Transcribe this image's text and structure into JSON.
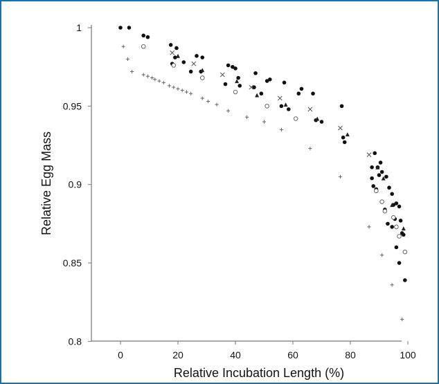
{
  "chart_data": {
    "type": "scatter",
    "title": "",
    "xlabel": "Relative Incubation Length (%)",
    "ylabel": "Relative Egg Mass",
    "xlim": [
      -10,
      100
    ],
    "ylim": [
      0.8,
      1.0
    ],
    "xticks": [
      0,
      20,
      40,
      60,
      80,
      100
    ],
    "yticks": [
      0.8,
      0.85,
      0.9,
      0.95,
      1.0
    ],
    "xtick_labels": [
      "0",
      "20",
      "40",
      "60",
      "80",
      "100"
    ],
    "ytick_labels": [
      "0.8",
      "0.85",
      "0.9",
      "0.95",
      "1"
    ],
    "grid": false,
    "series": [
      {
        "marker": "filled-circle",
        "color": "#111111",
        "points": [
          [
            0,
            1.0
          ],
          [
            3,
            1.0
          ],
          [
            8,
            0.995
          ],
          [
            9.5,
            0.994
          ],
          [
            17.5,
            0.989
          ],
          [
            19.5,
            0.987
          ],
          [
            19,
            0.981
          ],
          [
            22,
            0.978
          ],
          [
            18,
            0.977
          ],
          [
            24.5,
            0.972
          ],
          [
            26.5,
            0.982
          ],
          [
            28.5,
            0.981
          ],
          [
            28,
            0.972
          ],
          [
            36.5,
            0.964
          ],
          [
            37.5,
            0.976
          ],
          [
            39,
            0.975
          ],
          [
            40,
            0.974
          ],
          [
            41,
            0.968
          ],
          [
            41.5,
            0.963
          ],
          [
            47,
            0.971
          ],
          [
            46.5,
            0.962
          ],
          [
            49,
            0.958
          ],
          [
            51,
            0.966
          ],
          [
            52,
            0.967
          ],
          [
            57,
            0.965
          ],
          [
            56,
            0.95
          ],
          [
            58.5,
            0.948
          ],
          [
            62,
            0.958
          ],
          [
            63,
            0.961
          ],
          [
            67,
            0.958
          ],
          [
            68,
            0.941
          ],
          [
            70,
            0.94
          ],
          [
            77,
            0.95
          ],
          [
            77.5,
            0.93
          ],
          [
            78,
            0.927
          ],
          [
            87.5,
            0.911
          ],
          [
            88.5,
            0.92
          ],
          [
            89.5,
            0.911
          ],
          [
            90,
            0.906
          ],
          [
            90.5,
            0.914
          ],
          [
            91,
            0.908
          ],
          [
            87.5,
            0.904
          ],
          [
            88,
            0.899
          ],
          [
            89,
            0.897
          ],
          [
            92.5,
            0.905
          ],
          [
            93.5,
            0.898
          ],
          [
            94.5,
            0.894
          ],
          [
            92,
            0.884
          ],
          [
            93,
            0.875
          ],
          [
            95,
            0.887
          ],
          [
            96,
            0.888
          ],
          [
            97,
            0.886
          ],
          [
            95.5,
            0.878
          ],
          [
            97.5,
            0.877
          ],
          [
            98,
            0.869
          ],
          [
            96,
            0.86
          ],
          [
            97,
            0.85
          ],
          [
            99,
            0.839
          ],
          [
            98.5,
            0.868
          ],
          [
            94.5,
            0.873
          ]
        ]
      },
      {
        "marker": "open-circle",
        "color": "#555555",
        "points": [
          [
            8,
            0.988
          ],
          [
            18.5,
            0.976
          ],
          [
            28.5,
            0.968
          ],
          [
            40,
            0.959
          ],
          [
            51,
            0.95
          ],
          [
            61,
            0.942
          ],
          [
            89,
            0.896
          ],
          [
            91,
            0.889
          ],
          [
            92,
            0.883
          ],
          [
            95,
            0.879
          ],
          [
            96,
            0.873
          ],
          [
            97,
            0.867
          ],
          [
            99,
            0.857
          ]
        ]
      },
      {
        "marker": "x",
        "color": "#555555",
        "points": [
          [
            18,
            0.984
          ],
          [
            25.5,
            0.977
          ],
          [
            35.5,
            0.97
          ],
          [
            45.5,
            0.962
          ],
          [
            55.5,
            0.955
          ],
          [
            66,
            0.948
          ],
          [
            76.5,
            0.936
          ],
          [
            86.5,
            0.919
          ]
        ]
      },
      {
        "marker": "triangle",
        "color": "#222222",
        "points": [
          [
            20,
            0.982
          ],
          [
            28.5,
            0.973
          ],
          [
            40.5,
            0.966
          ],
          [
            47.5,
            0.957
          ],
          [
            57.5,
            0.951
          ],
          [
            68.5,
            0.942
          ],
          [
            79,
            0.932
          ],
          [
            89.5,
            0.911
          ],
          [
            91.5,
            0.904
          ],
          [
            94.5,
            0.887
          ],
          [
            98.5,
            0.872
          ]
        ]
      },
      {
        "marker": "plus",
        "color": "#666666",
        "points": [
          [
            1,
            0.988
          ],
          [
            2.5,
            0.98
          ],
          [
            4,
            0.972
          ],
          [
            8,
            0.97
          ],
          [
            9.5,
            0.969
          ],
          [
            11,
            0.968
          ],
          [
            12,
            0.967
          ],
          [
            13.5,
            0.966
          ],
          [
            15,
            0.965
          ],
          [
            17,
            0.963
          ],
          [
            18.5,
            0.962
          ],
          [
            20,
            0.961
          ],
          [
            21.5,
            0.96
          ],
          [
            23,
            0.959
          ],
          [
            24.5,
            0.958
          ],
          [
            28.5,
            0.955
          ],
          [
            30.5,
            0.953
          ],
          [
            33.5,
            0.951
          ],
          [
            37.5,
            0.947
          ],
          [
            44,
            0.943
          ],
          [
            50,
            0.94
          ],
          [
            56,
            0.935
          ],
          [
            66,
            0.923
          ],
          [
            76.5,
            0.905
          ],
          [
            86.5,
            0.873
          ],
          [
            91,
            0.855
          ],
          [
            94.5,
            0.836
          ],
          [
            98,
            0.814
          ]
        ]
      }
    ]
  }
}
